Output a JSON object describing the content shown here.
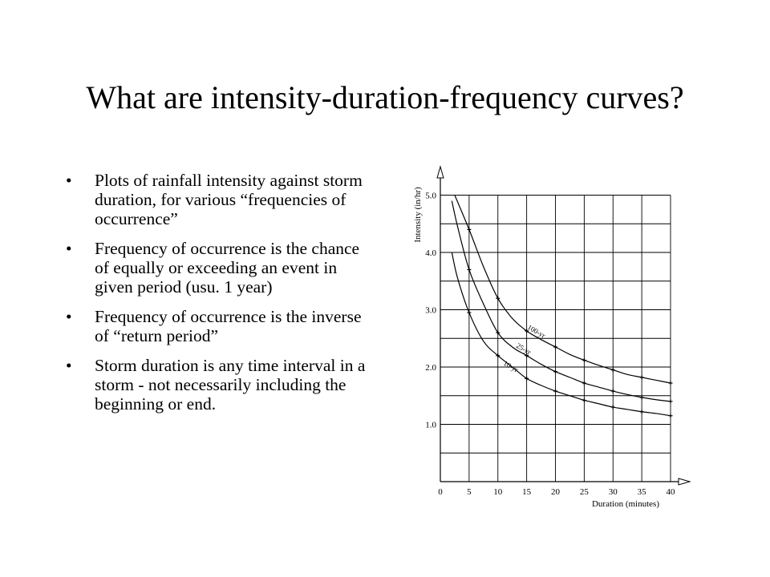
{
  "slide": {
    "title": "What are intensity-duration-frequency curves?",
    "bullets": [
      "Plots of rainfall intensity against storm duration, for various “frequencies of occurrence”",
      "Frequency of occurrence is the chance of equally or exceeding an event in given period (usu. 1 year)",
      "Frequency of occurrence is the inverse of “return period”",
      "Storm duration is any time interval in a storm - not necessarily including the beginning or end."
    ]
  },
  "chart_data": {
    "type": "line",
    "title": "",
    "xlabel": "Duration (minutes)",
    "ylabel": "Intensity (in/hr)",
    "xlim": [
      0,
      40
    ],
    "ylim": [
      0,
      5.3
    ],
    "xticks": [
      0,
      5,
      10,
      15,
      20,
      25,
      30,
      35,
      40
    ],
    "yticks": [
      1.0,
      2.0,
      3.0,
      4.0,
      5.0
    ],
    "ytick_labels": [
      "1.0",
      "2.0",
      "3.0",
      "4.0",
      "5.0"
    ],
    "grid": true,
    "series": [
      {
        "name": "100-yr",
        "x": [
          2.5,
          5,
          7.5,
          10,
          12.5,
          15,
          17.5,
          20,
          22.5,
          25,
          27.5,
          30,
          32.5,
          35,
          37.5,
          40
        ],
        "y": [
          5.0,
          4.4,
          3.75,
          3.2,
          2.85,
          2.63,
          2.48,
          2.35,
          2.22,
          2.12,
          2.03,
          1.95,
          1.87,
          1.82,
          1.77,
          1.72
        ]
      },
      {
        "name": "25-yr",
        "x": [
          2,
          3,
          5,
          7.5,
          10,
          12.5,
          15,
          17.5,
          20,
          22.5,
          25,
          27.5,
          30,
          32.5,
          35,
          37.5,
          40
        ],
        "y": [
          4.9,
          4.45,
          3.7,
          3.1,
          2.6,
          2.35,
          2.2,
          2.05,
          1.92,
          1.82,
          1.72,
          1.65,
          1.58,
          1.52,
          1.47,
          1.43,
          1.4
        ]
      },
      {
        "name": "10-yr",
        "x": [
          2,
          3,
          5,
          7.5,
          10,
          12.5,
          15,
          17.5,
          20,
          22.5,
          25,
          27.5,
          30,
          32.5,
          35,
          37.5,
          40
        ],
        "y": [
          4.0,
          3.55,
          2.95,
          2.45,
          2.2,
          2.0,
          1.8,
          1.68,
          1.58,
          1.5,
          1.42,
          1.36,
          1.3,
          1.26,
          1.22,
          1.19,
          1.15
        ]
      }
    ],
    "curve_labels": [
      "100-yr",
      "25-yr",
      "10-yr"
    ]
  }
}
